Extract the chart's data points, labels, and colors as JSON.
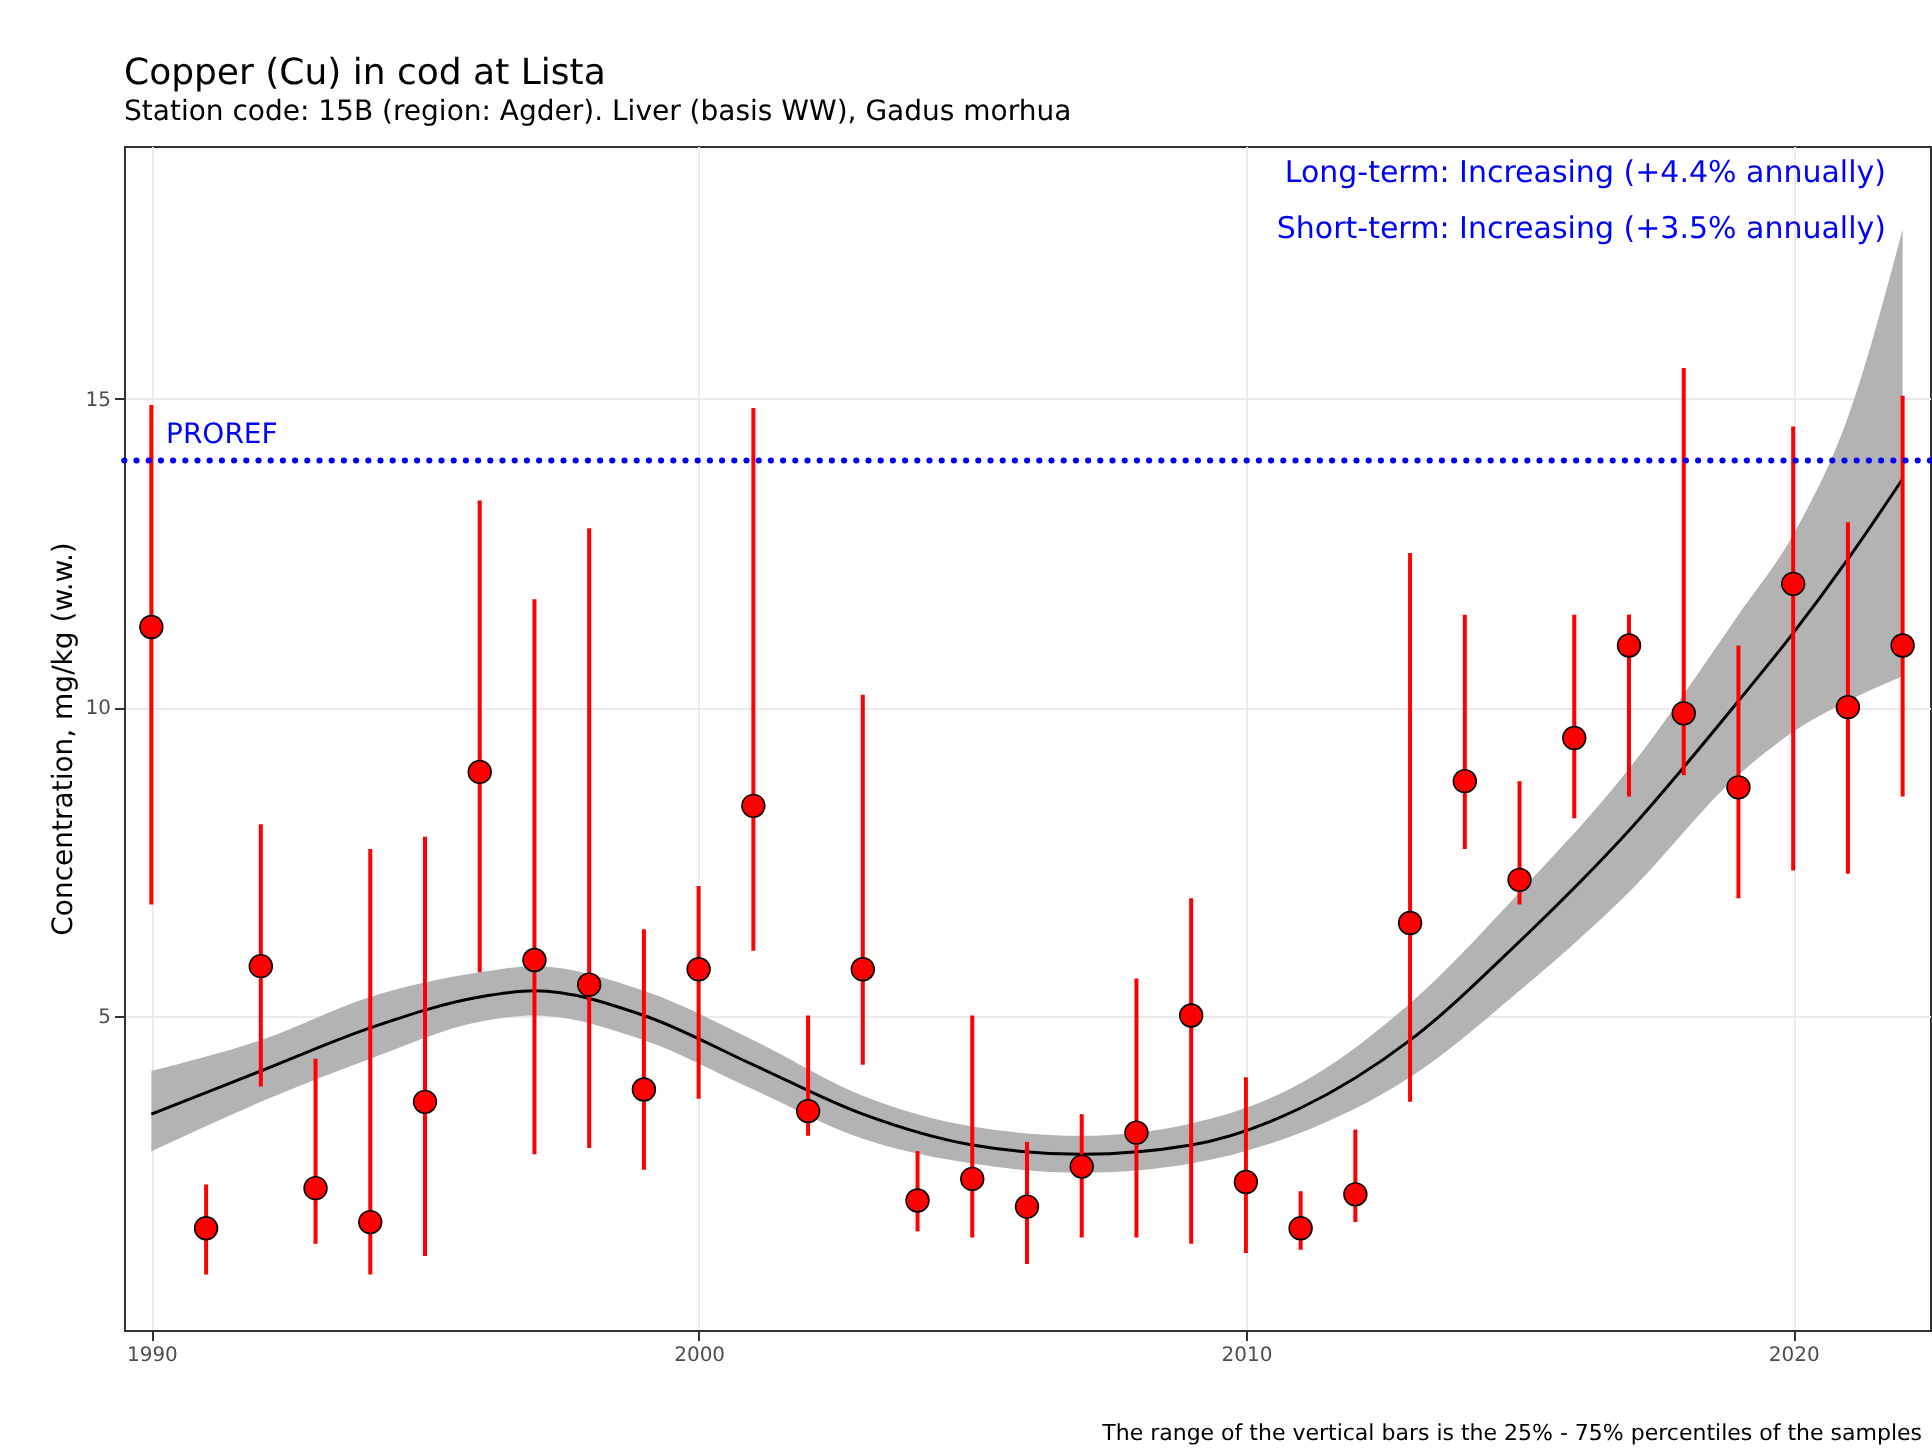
{
  "chart_data": {
    "type": "scatter",
    "title": "Copper (Cu) in cod at Lista",
    "subtitle": "Station code: 15B (region: Agder). Liver (basis WW), Gadus morhua",
    "ylabel": "Concentration, mg/kg (w.w.)",
    "x": [
      1990,
      1991,
      1992,
      1993,
      1994,
      1995,
      1996,
      1997,
      1998,
      1999,
      2000,
      2001,
      2002,
      2003,
      2004,
      2005,
      2006,
      2007,
      2008,
      2009,
      2010,
      2011,
      2012,
      2013,
      2014,
      2015,
      2016,
      2017,
      2018,
      2019,
      2020,
      2021,
      2022
    ],
    "series": [
      {
        "color": "#ff0000",
        "marker": "circle",
        "values": [
          11.3,
          1.55,
          5.8,
          2.2,
          1.65,
          3.6,
          8.95,
          5.9,
          5.5,
          3.8,
          5.75,
          8.4,
          3.45,
          5.75,
          2.0,
          2.35,
          1.9,
          2.55,
          3.1,
          5.0,
          2.3,
          1.55,
          2.1,
          6.5,
          8.8,
          7.2,
          9.5,
          11.0,
          9.9,
          8.7,
          12.0,
          10.0,
          11.0
        ],
        "errors": [
          [
            6.8,
            14.9
          ],
          [
            0.8,
            2.26
          ],
          [
            3.85,
            8.1
          ],
          [
            1.3,
            4.3
          ],
          [
            0.8,
            7.7
          ],
          [
            1.1,
            7.9
          ],
          [
            5.7,
            13.35
          ],
          [
            2.75,
            11.75
          ],
          [
            2.85,
            12.9
          ],
          [
            2.5,
            6.4
          ],
          [
            3.65,
            7.1
          ],
          [
            6.05,
            14.85
          ],
          [
            3.05,
            5.0
          ],
          [
            4.2,
            10.2
          ],
          [
            1.5,
            2.8
          ],
          [
            1.4,
            5.0
          ],
          [
            0.97,
            2.95
          ],
          [
            1.4,
            3.4
          ],
          [
            1.4,
            5.6
          ],
          [
            1.3,
            6.9
          ],
          [
            1.15,
            4.0
          ],
          [
            1.2,
            2.15
          ],
          [
            1.65,
            3.15
          ],
          [
            3.6,
            12.5
          ],
          [
            7.7,
            11.5
          ],
          [
            6.8,
            8.8
          ],
          [
            8.2,
            11.5
          ],
          [
            8.55,
            11.5
          ],
          [
            8.9,
            15.5
          ],
          [
            6.9,
            11.0
          ],
          [
            7.35,
            14.55
          ],
          [
            7.3,
            13.0
          ],
          [
            8.55,
            15.05
          ]
        ]
      },
      {
        "type": "line",
        "color": "#000000",
        "x": [
          1990,
          1992,
          1994,
          1996,
          1997,
          1999,
          2001,
          2003,
          2005,
          2007,
          2009,
          2011,
          2013,
          2015,
          2017,
          2019,
          2020,
          2021,
          2022
        ],
        "values": [
          3.4,
          4.1,
          4.8,
          5.3,
          5.4,
          5.0,
          4.2,
          3.4,
          2.9,
          2.75,
          2.9,
          3.5,
          4.6,
          6.2,
          8.0,
          10.1,
          11.2,
          12.4,
          13.7
        ],
        "lower": [
          2.8,
          3.6,
          4.3,
          4.9,
          5.0,
          4.6,
          3.8,
          3.0,
          2.6,
          2.45,
          2.6,
          3.1,
          4.0,
          5.4,
          7.0,
          8.9,
          9.6,
          10.1,
          10.5
        ],
        "upper": [
          4.1,
          4.6,
          5.3,
          5.7,
          5.8,
          5.4,
          4.6,
          3.7,
          3.2,
          3.05,
          3.25,
          3.9,
          5.2,
          7.0,
          9.0,
          11.5,
          12.8,
          14.7,
          17.75
        ]
      }
    ],
    "xlim": [
      1989.5,
      2022.5
    ],
    "xticks": [
      1990,
      2000,
      2010,
      2020
    ],
    "ylim": [
      -0.1,
      19.1
    ],
    "yticks": [
      5,
      10,
      15
    ],
    "grid": true,
    "ref_lines": [
      {
        "axis": "y",
        "value": 14,
        "label": "PROREF",
        "color": "#0000ff",
        "line_style": "dotted"
      }
    ],
    "annotations": [
      "Long-term: Increasing (+4.4% annually)",
      "Short-term: Increasing (+3.5% annually)",
      "The range of the vertical bars is the 25% - 75% percentiles of the samples"
    ]
  }
}
